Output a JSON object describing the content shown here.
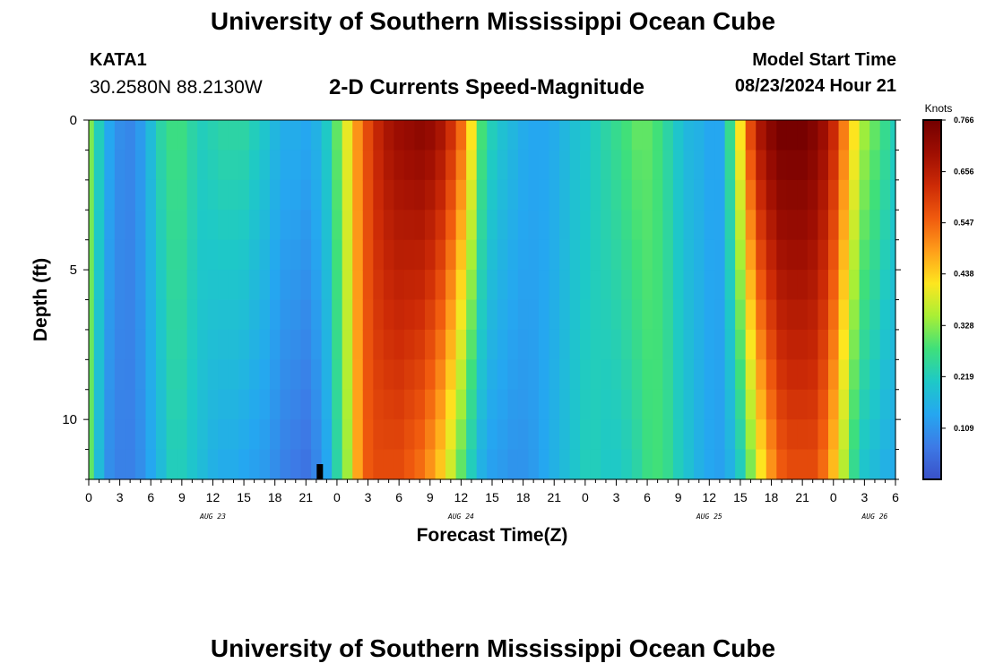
{
  "page": {
    "title": "University of Southern Mississippi Ocean Cube",
    "bottom_title": "University of Southern Mississippi Ocean Cube"
  },
  "station": {
    "id": "KATA1",
    "coords": "30.2580N  88.2130W"
  },
  "model_start": {
    "label": "Model Start Time",
    "value": "08/23/2024 Hour 21"
  },
  "chart_data": {
    "type": "heatmap",
    "title": "2-D Currents Speed-Magnitude",
    "xlabel": "Forecast Time(Z)",
    "ylabel": "Depth (ft)",
    "x_range_hours": [
      0,
      78
    ],
    "x_origin": "AUG 23 00Z",
    "x_tick_step_hours": 3,
    "x_tick_labels": [
      "0",
      "3",
      "6",
      "9",
      "12",
      "15",
      "18",
      "21",
      "0",
      "3",
      "6",
      "9",
      "12",
      "15",
      "18",
      "21",
      "0",
      "3",
      "6",
      "9",
      "12",
      "15",
      "18",
      "21",
      "0",
      "3",
      "6"
    ],
    "day_labels": [
      {
        "text": "AUG 23",
        "hour": 12
      },
      {
        "text": "AUG 24",
        "hour": 36
      },
      {
        "text": "AUG 25",
        "hour": 60
      },
      {
        "text": "AUG 26",
        "hour": 76
      }
    ],
    "ylim": [
      0,
      12
    ],
    "y_inverted": true,
    "y_tick_labels": [
      "0",
      "5",
      "10"
    ],
    "y_tick_values": [
      0,
      5,
      10
    ],
    "model_start_marker_hour": 21,
    "colorbar": {
      "label": "Knots",
      "min": 0.0,
      "max": 0.766,
      "ticks": [
        "0.766",
        "0.656",
        "0.547",
        "0.438",
        "0.328",
        "0.219",
        "0.109"
      ],
      "tick_values": [
        0.766,
        0.656,
        0.547,
        0.438,
        0.328,
        0.219,
        0.109
      ],
      "colors": [
        "#3a50c8",
        "#3d7ae6",
        "#25a7f0",
        "#1ec9c7",
        "#3fe07a",
        "#a9ef35",
        "#fde61f",
        "#ff9e1a",
        "#f05a0e",
        "#cc2a06",
        "#9e0e02",
        "#730000"
      ]
    },
    "depth_levels_ft": [
      0,
      1,
      2,
      3,
      4,
      5,
      6,
      7,
      8,
      9,
      10,
      11
    ],
    "surface_speed_knots": [
      [
        0,
        0.32
      ],
      [
        1,
        0.22
      ],
      [
        2,
        0.14
      ],
      [
        3,
        0.1
      ],
      [
        4,
        0.09
      ],
      [
        5,
        0.12
      ],
      [
        6,
        0.18
      ],
      [
        7,
        0.24
      ],
      [
        8,
        0.27
      ],
      [
        9,
        0.27
      ],
      [
        10,
        0.24
      ],
      [
        11,
        0.22
      ],
      [
        12,
        0.23
      ],
      [
        13,
        0.24
      ],
      [
        14,
        0.24
      ],
      [
        15,
        0.24
      ],
      [
        16,
        0.22
      ],
      [
        17,
        0.2
      ],
      [
        18,
        0.17
      ],
      [
        19,
        0.15
      ],
      [
        20,
        0.15
      ],
      [
        21,
        0.14
      ],
      [
        22,
        0.16
      ],
      [
        23,
        0.21
      ],
      [
        24,
        0.3
      ],
      [
        25,
        0.4
      ],
      [
        26,
        0.5
      ],
      [
        27,
        0.58
      ],
      [
        28,
        0.64
      ],
      [
        29,
        0.68
      ],
      [
        30,
        0.7
      ],
      [
        31,
        0.71
      ],
      [
        32,
        0.72
      ],
      [
        33,
        0.71
      ],
      [
        34,
        0.68
      ],
      [
        35,
        0.62
      ],
      [
        36,
        0.54
      ],
      [
        37,
        0.42
      ],
      [
        38,
        0.28
      ],
      [
        39,
        0.22
      ],
      [
        40,
        0.19
      ],
      [
        41,
        0.17
      ],
      [
        42,
        0.15
      ],
      [
        43,
        0.14
      ],
      [
        44,
        0.14
      ],
      [
        45,
        0.15
      ],
      [
        46,
        0.17
      ],
      [
        47,
        0.19
      ],
      [
        48,
        0.2
      ],
      [
        49,
        0.22
      ],
      [
        50,
        0.24
      ],
      [
        51,
        0.26
      ],
      [
        52,
        0.28
      ],
      [
        53,
        0.3
      ],
      [
        54,
        0.3
      ],
      [
        55,
        0.28
      ],
      [
        56,
        0.24
      ],
      [
        57,
        0.2
      ],
      [
        58,
        0.17
      ],
      [
        59,
        0.16
      ],
      [
        60,
        0.14
      ],
      [
        61,
        0.14
      ],
      [
        62,
        0.26
      ],
      [
        63,
        0.42
      ],
      [
        64,
        0.58
      ],
      [
        65,
        0.68
      ],
      [
        66,
        0.73
      ],
      [
        67,
        0.76
      ],
      [
        68,
        0.76
      ],
      [
        69,
        0.76
      ],
      [
        70,
        0.74
      ],
      [
        71,
        0.7
      ],
      [
        72,
        0.63
      ],
      [
        73,
        0.52
      ],
      [
        74,
        0.42
      ],
      [
        75,
        0.34
      ],
      [
        76,
        0.3
      ],
      [
        77,
        0.26
      ],
      [
        78,
        0.22
      ]
    ],
    "bottom_speed_knots": [
      [
        0,
        0.3
      ],
      [
        1,
        0.18
      ],
      [
        2,
        0.1
      ],
      [
        3,
        0.08
      ],
      [
        4,
        0.08
      ],
      [
        5,
        0.1
      ],
      [
        6,
        0.14
      ],
      [
        7,
        0.18
      ],
      [
        8,
        0.22
      ],
      [
        9,
        0.22
      ],
      [
        10,
        0.2
      ],
      [
        11,
        0.18
      ],
      [
        12,
        0.16
      ],
      [
        13,
        0.15
      ],
      [
        14,
        0.15
      ],
      [
        15,
        0.14
      ],
      [
        16,
        0.13
      ],
      [
        17,
        0.12
      ],
      [
        18,
        0.1
      ],
      [
        19,
        0.08
      ],
      [
        20,
        0.07
      ],
      [
        21,
        0.06
      ],
      [
        22,
        0.09
      ],
      [
        23,
        0.14
      ],
      [
        24,
        0.24
      ],
      [
        25,
        0.34
      ],
      [
        26,
        0.48
      ],
      [
        27,
        0.56
      ],
      [
        28,
        0.58
      ],
      [
        29,
        0.58
      ],
      [
        30,
        0.58
      ],
      [
        31,
        0.56
      ],
      [
        32,
        0.54
      ],
      [
        33,
        0.5
      ],
      [
        34,
        0.45
      ],
      [
        35,
        0.38
      ],
      [
        36,
        0.3
      ],
      [
        37,
        0.22
      ],
      [
        38,
        0.16
      ],
      [
        39,
        0.13
      ],
      [
        40,
        0.12
      ],
      [
        41,
        0.11
      ],
      [
        42,
        0.11
      ],
      [
        43,
        0.12
      ],
      [
        44,
        0.14
      ],
      [
        45,
        0.16
      ],
      [
        46,
        0.18
      ],
      [
        47,
        0.2
      ],
      [
        48,
        0.22
      ],
      [
        49,
        0.22
      ],
      [
        50,
        0.21
      ],
      [
        51,
        0.21
      ],
      [
        52,
        0.22
      ],
      [
        53,
        0.24
      ],
      [
        54,
        0.27
      ],
      [
        55,
        0.28
      ],
      [
        56,
        0.26
      ],
      [
        57,
        0.22
      ],
      [
        58,
        0.19
      ],
      [
        59,
        0.16
      ],
      [
        60,
        0.14
      ],
      [
        61,
        0.13
      ],
      [
        62,
        0.16
      ],
      [
        63,
        0.22
      ],
      [
        64,
        0.32
      ],
      [
        65,
        0.42
      ],
      [
        66,
        0.5
      ],
      [
        67,
        0.56
      ],
      [
        68,
        0.58
      ],
      [
        69,
        0.58
      ],
      [
        70,
        0.58
      ],
      [
        71,
        0.54
      ],
      [
        72,
        0.46
      ],
      [
        73,
        0.36
      ],
      [
        74,
        0.26
      ],
      [
        75,
        0.2
      ],
      [
        76,
        0.18
      ],
      [
        77,
        0.16
      ],
      [
        78,
        0.15
      ]
    ]
  }
}
